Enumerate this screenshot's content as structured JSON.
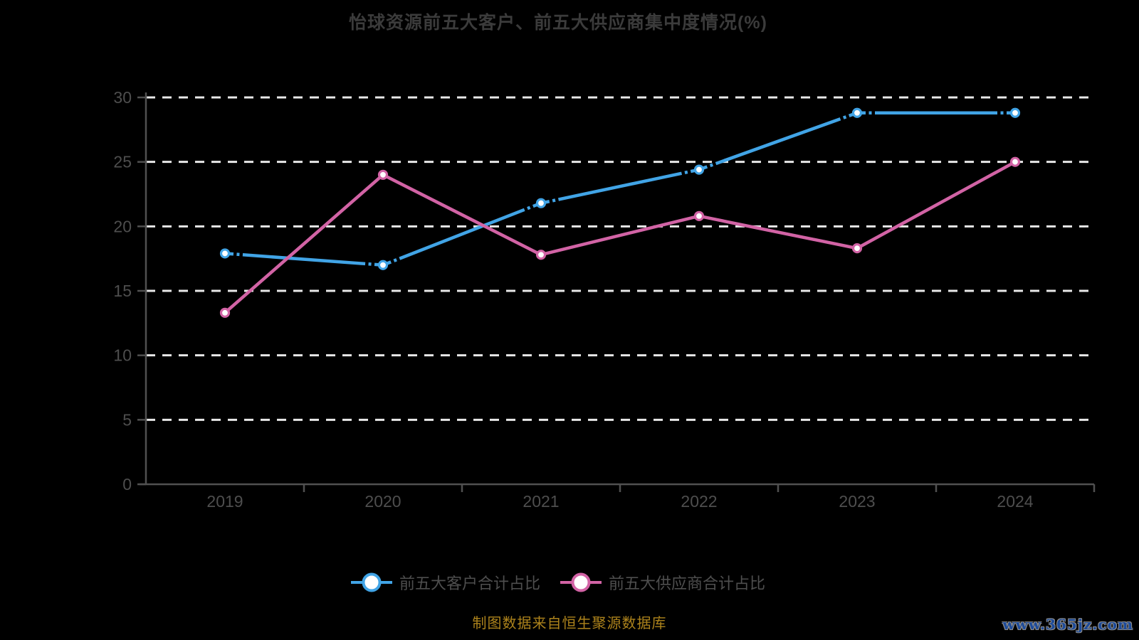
{
  "title": "怡球资源前五大客户、前五大供应商集中度情况(%)",
  "source_note": "制图数据来自恒生聚源数据库",
  "watermark": "www.365jz.com",
  "colors": {
    "background": "#000000",
    "title_text": "#3b3b3b",
    "axis_line": "#505050",
    "axis_label": "#4e4e4e",
    "gridline": "#e8e8e8",
    "marker_fill": "#ffffff",
    "legend_text": "#4e4e4e",
    "source_text": "#ad831c",
    "watermark_text": "#1d4b9a",
    "series_customers": "#41a4e6",
    "series_suppliers": "#d263a5"
  },
  "chart_data": {
    "type": "line",
    "title": "怡球资源前五大客户、前五大供应商集中度情况(%)",
    "categories": [
      "2019",
      "2020",
      "2021",
      "2022",
      "2023",
      "2024"
    ],
    "series": [
      {
        "name": "前五大客户合计占比",
        "color": "#41a4e6",
        "values": [
          17.9,
          17.0,
          21.8,
          24.4,
          28.8,
          28.8
        ],
        "marker": "circle",
        "gap_dashes_near_points": true
      },
      {
        "name": "前五大供应商合计占比",
        "color": "#d263a5",
        "values": [
          13.3,
          24.0,
          17.8,
          20.8,
          18.3,
          25.0
        ],
        "marker": "circle",
        "gap_dashes_near_points": false
      }
    ],
    "xlabel": "",
    "ylabel": "",
    "ylim": [
      0,
      30
    ],
    "yticks": [
      0,
      5,
      10,
      15,
      20,
      25,
      30
    ],
    "grid": "horizontal-dashed-white",
    "legend_position": "bottom"
  }
}
